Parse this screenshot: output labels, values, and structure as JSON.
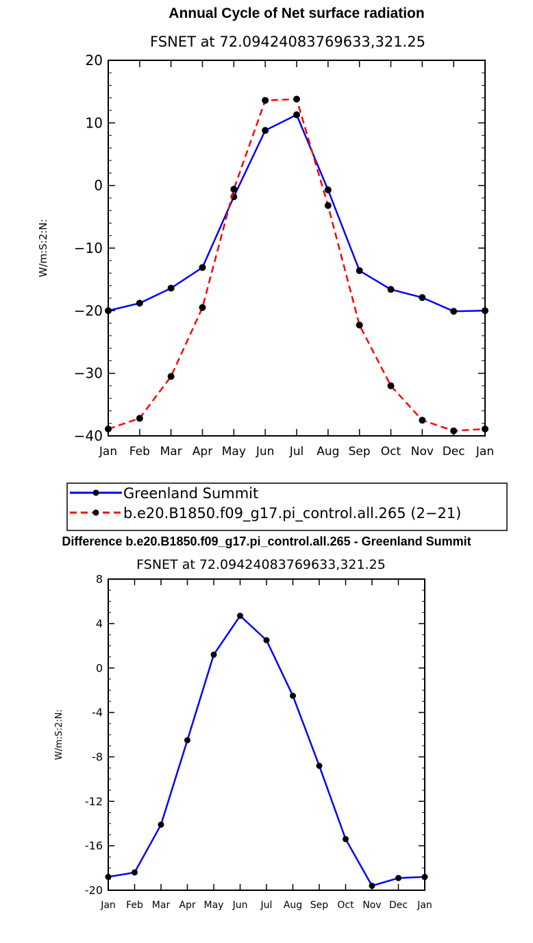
{
  "chart_data": [
    {
      "type": "line",
      "title": "Annual Cycle of Net surface radiation",
      "subtitle": "FSNET at 72.09424083769633,321.25",
      "xlabel": "",
      "ylabel": "W/m:S:2:N:",
      "categories": [
        "Jan",
        "Feb",
        "Mar",
        "Apr",
        "May",
        "Jun",
        "Jul",
        "Aug",
        "Sep",
        "Oct",
        "Nov",
        "Dec",
        "Jan"
      ],
      "ylim": [
        -40,
        20
      ],
      "yticks": [
        -40,
        -30,
        -20,
        -10,
        0,
        10,
        20
      ],
      "ytick_labels": [
        "−40",
        "−30",
        "−20",
        "−10",
        "0",
        "10",
        "20"
      ],
      "grid": false,
      "legend_position": "below",
      "series": [
        {
          "name": "Greenland Summit",
          "color": "#0000ff",
          "dash": "solid",
          "values": [
            -20.0,
            -18.8,
            -16.4,
            -13.1,
            -1.8,
            8.8,
            11.3,
            -0.7,
            -13.6,
            -16.6,
            -17.9,
            -20.1,
            -20.0
          ]
        },
        {
          "name": "b.e20.B1850.f09_g17.pi_control.all.265 (2−21)",
          "color": "#ff0000",
          "dash": "dashed",
          "values": [
            -38.9,
            -37.2,
            -30.5,
            -19.5,
            -0.6,
            13.6,
            13.8,
            -3.2,
            -22.3,
            -32.0,
            -37.5,
            -39.2,
            -38.9
          ]
        }
      ]
    },
    {
      "type": "line",
      "title": "Difference b.e20.B1850.f09_g17.pi_control.all.265 - Greenland Summit",
      "subtitle": "FSNET at 72.09424083769633,321.25",
      "xlabel": "",
      "ylabel": "W/m:S:2:N:",
      "categories": [
        "Jan",
        "Feb",
        "Mar",
        "Apr",
        "May",
        "Jun",
        "Jul",
        "Aug",
        "Sep",
        "Oct",
        "Nov",
        "Dec",
        "Jan"
      ],
      "ylim": [
        -20,
        8
      ],
      "yticks": [
        -20,
        -16,
        -12,
        -8,
        -4,
        0,
        4,
        8
      ],
      "ytick_labels": [
        "-20",
        "-16",
        "-12",
        "-8",
        "-4",
        "0",
        "4",
        "8"
      ],
      "grid": false,
      "series": [
        {
          "name": "Difference",
          "color": "#0000ff",
          "dash": "solid",
          "values": [
            -18.8,
            -18.4,
            -14.1,
            -6.5,
            1.2,
            4.7,
            2.5,
            -2.5,
            -8.8,
            -15.4,
            -19.6,
            -18.9,
            -18.8
          ]
        }
      ]
    }
  ]
}
